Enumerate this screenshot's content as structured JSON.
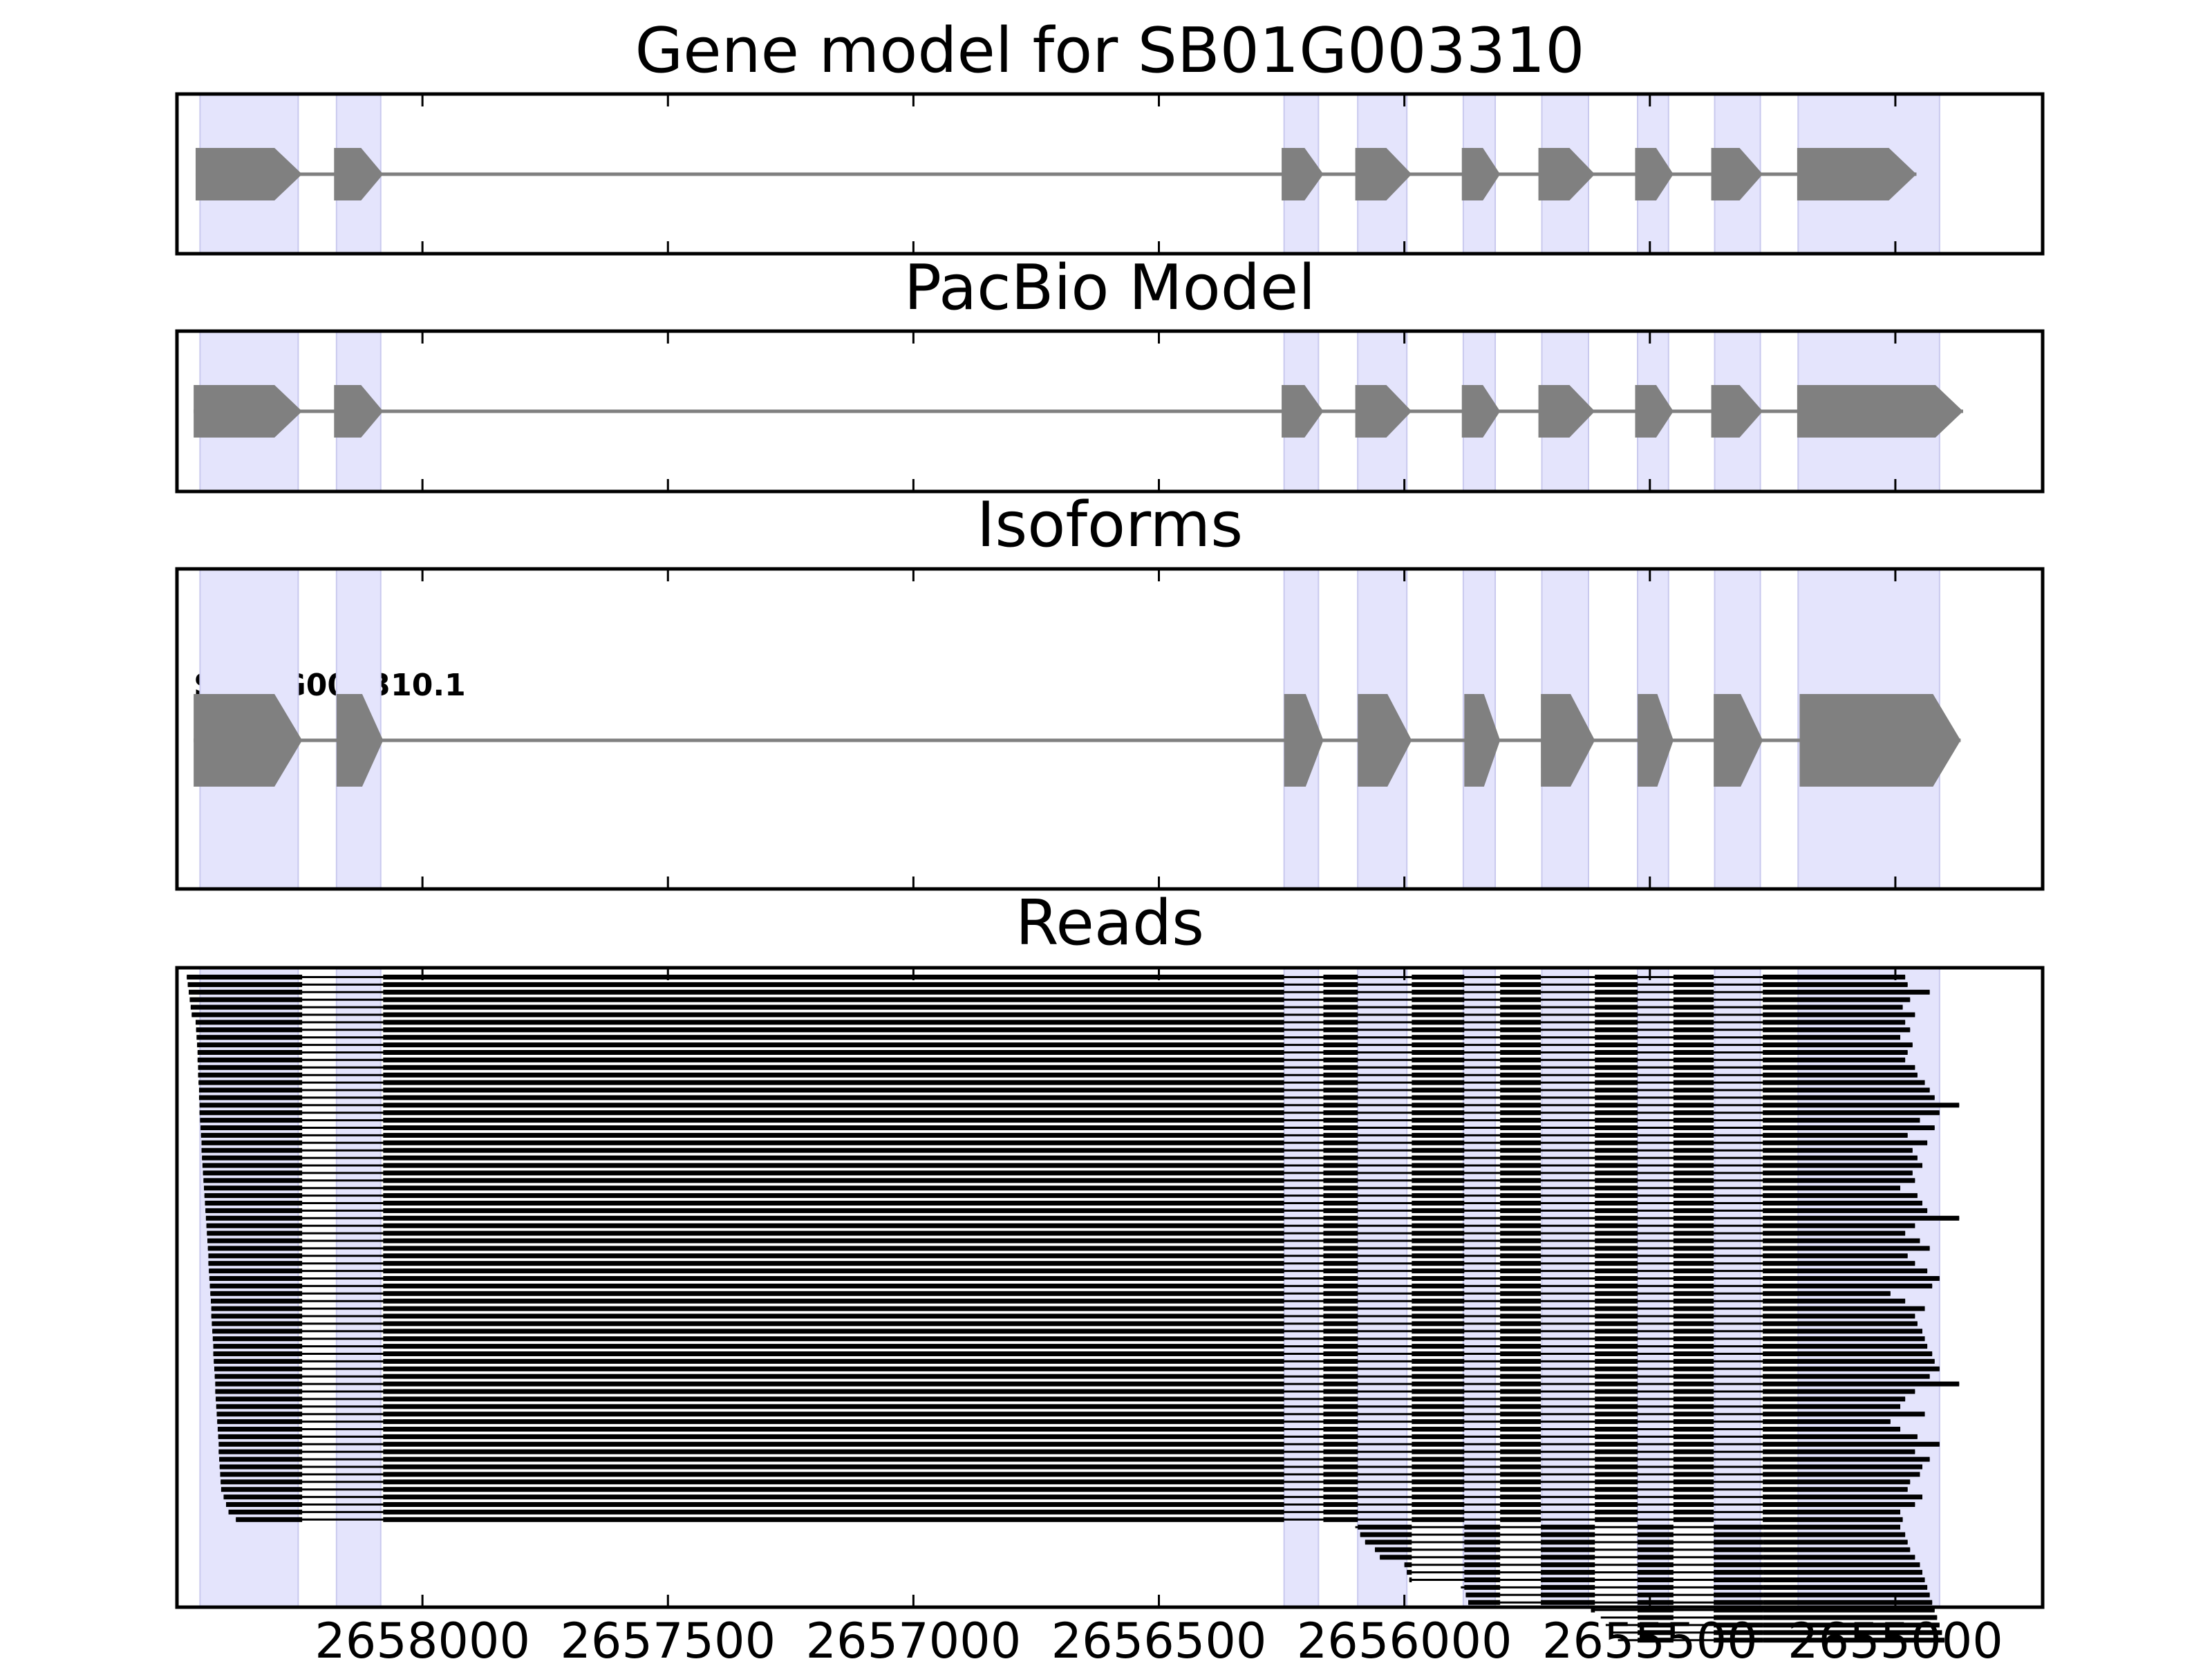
{
  "chart_data": {
    "type": "gene-track",
    "xlim": [
      2658500,
      2654700
    ],
    "x_ticks": [
      "2658000",
      "2657500",
      "2657000",
      "2656500",
      "2656000",
      "2655500",
      "2655000"
    ],
    "x_tick_values": [
      2658000,
      2657500,
      2657000,
      2656500,
      2656000,
      2655500,
      2655000
    ],
    "highlight_color": "#e4e4fc",
    "exon_color": "#808080",
    "read_color": "#000000",
    "exon_regions": [
      [
        2658453,
        2658253
      ],
      [
        2658175,
        2658085
      ],
      [
        2656245,
        2656175
      ],
      [
        2656095,
        2655995
      ],
      [
        2655880,
        2655815
      ],
      [
        2655720,
        2655625
      ],
      [
        2655525,
        2655462
      ],
      [
        2655368,
        2655275
      ],
      [
        2655198,
        2654910
      ]
    ],
    "panels": [
      {
        "title": "Gene model for SB01G003310",
        "exons": [
          [
            2658462,
            2658245
          ],
          [
            2658180,
            2658080
          ],
          [
            2656250,
            2656165
          ],
          [
            2656100,
            2655985
          ],
          [
            2655883,
            2655805
          ],
          [
            2655727,
            2655612
          ],
          [
            2655530,
            2655452
          ],
          [
            2655375,
            2655270
          ],
          [
            2655200,
            2654957
          ]
        ]
      },
      {
        "title": "PacBio Model",
        "exons": [
          [
            2658466,
            2658245
          ],
          [
            2658180,
            2658080
          ],
          [
            2656250,
            2656165
          ],
          [
            2656100,
            2655985
          ],
          [
            2655883,
            2655805
          ],
          [
            2655727,
            2655612
          ],
          [
            2655530,
            2655452
          ],
          [
            2655375,
            2655270
          ],
          [
            2655200,
            2654862
          ]
        ]
      },
      {
        "title": "Isoforms",
        "isoform_label": "SB01G003310.1",
        "exons": [
          [
            2658466,
            2658245
          ],
          [
            2658175,
            2658080
          ],
          [
            2656245,
            2656165
          ],
          [
            2656095,
            2655985
          ],
          [
            2655878,
            2655805
          ],
          [
            2655722,
            2655612
          ],
          [
            2655525,
            2655452
          ],
          [
            2655370,
            2655270
          ],
          [
            2655195,
            2654867
          ]
        ]
      },
      {
        "title": "Reads",
        "read_count": 73,
        "read_segment_bounds": [
          [
            2658080,
            2656245
          ],
          [
            2656165,
            2656095
          ],
          [
            2655985,
            2655878
          ],
          [
            2655805,
            2655722
          ],
          [
            2655612,
            2655525
          ],
          [
            2655452,
            2655370
          ]
        ],
        "read_starts": [
          2658480,
          2658478,
          2658476,
          2658474,
          2658472,
          2658470,
          2658462,
          2658461,
          2658460,
          2658459,
          2658458,
          2658458,
          2658457,
          2658457,
          2658456,
          2658455,
          2658455,
          2658454,
          2658454,
          2658453,
          2658452,
          2658451,
          2658450,
          2658450,
          2658449,
          2658448,
          2658447,
          2658446,
          2658445,
          2658444,
          2658443,
          2658442,
          2658441,
          2658440,
          2658439,
          2658438,
          2658437,
          2658436,
          2658436,
          2658435,
          2658434,
          2658433,
          2658432,
          2658431,
          2658430,
          2658430,
          2658429,
          2658428,
          2658427,
          2658426,
          2658426,
          2658425,
          2658424,
          2658423,
          2658422,
          2658422,
          2658421,
          2658420,
          2658419,
          2658418,
          2658417,
          2658416,
          2658415,
          2658415,
          2658414,
          2658413,
          2658412,
          2658411,
          2658410,
          2658405,
          2658400,
          2658395,
          2658380
        ],
        "read_ends": [
          2654980,
          2654975,
          2654930,
          2654970,
          2654985,
          2654960,
          2654980,
          2654970,
          2654990,
          2654965,
          2654975,
          2654980,
          2654960,
          2654955,
          2654940,
          2654930,
          2654920,
          2654870,
          2654910,
          2654950,
          2654920,
          2654975,
          2654935,
          2654965,
          2654955,
          2654945,
          2654965,
          2654960,
          2654990,
          2654955,
          2654945,
          2654935,
          2654870,
          2654960,
          2654980,
          2654950,
          2654930,
          2654975,
          2654960,
          2654935,
          2654910,
          2654925,
          2655010,
          2654980,
          2654940,
          2654960,
          2654955,
          2654945,
          2654940,
          2654935,
          2654925,
          2654920,
          2654910,
          2654930,
          2654870,
          2654960,
          2654980,
          2654990,
          2654940,
          2655010,
          2654990,
          2654955,
          2654910,
          2654960,
          2654930,
          2654945,
          2654950,
          2654970,
          2654975,
          2654945,
          2654960,
          2654990,
          2654985
        ],
        "tail_reads": [
          [
            2656100,
            2654990
          ],
          [
            2656090,
            2654980
          ],
          [
            2656080,
            2654975
          ],
          [
            2656060,
            2654970
          ],
          [
            2656050,
            2654960
          ],
          [
            2656000,
            2654950
          ],
          [
            2655995,
            2654945
          ],
          [
            2655990,
            2654940
          ],
          [
            2655885,
            2654935
          ],
          [
            2655875,
            2654930
          ],
          [
            2655870,
            2654925
          ],
          [
            2655620,
            2654920
          ],
          [
            2655600,
            2654915
          ],
          [
            2655590,
            2654910
          ],
          [
            2655580,
            2654905
          ],
          [
            2655565,
            2654900
          ]
        ]
      }
    ]
  }
}
